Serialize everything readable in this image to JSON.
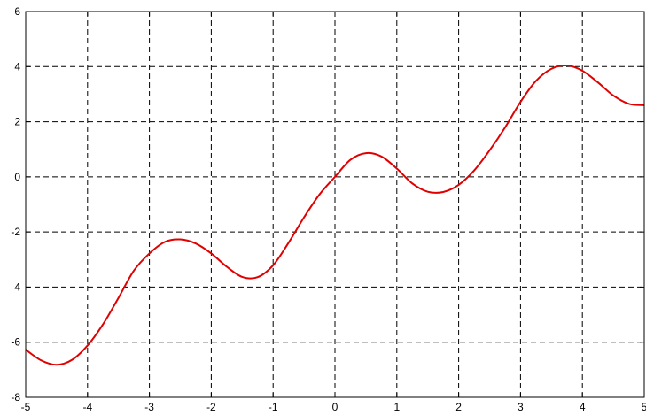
{
  "chart_data": {
    "type": "line",
    "title": "",
    "xlabel": "",
    "ylabel": "",
    "xlim": [
      -5,
      5
    ],
    "ylim": [
      -8,
      6
    ],
    "xticks": [
      -5,
      -4,
      -3,
      -2,
      -1,
      0,
      1,
      2,
      3,
      4,
      5
    ],
    "yticks": [
      -8,
      -6,
      -4,
      -2,
      0,
      2,
      4,
      6
    ],
    "grid": true,
    "series": [
      {
        "color": "#e00000",
        "x": [
          -5.0,
          -4.75,
          -4.5,
          -4.25,
          -4.0,
          -3.75,
          -3.5,
          -3.25,
          -3.0,
          -2.75,
          -2.5,
          -2.25,
          -2.0,
          -1.75,
          -1.5,
          -1.25,
          -1.0,
          -0.75,
          -0.5,
          -0.25,
          0.0,
          0.25,
          0.5,
          0.75,
          1.0,
          1.25,
          1.5,
          1.75,
          2.0,
          2.25,
          2.5,
          2.75,
          3.0,
          3.25,
          3.5,
          3.75,
          4.0,
          4.25,
          4.5,
          4.75,
          5.0
        ],
        "y": [
          -6.27,
          -6.66,
          -6.82,
          -6.64,
          -6.12,
          -5.35,
          -4.39,
          -3.4,
          -2.78,
          -2.36,
          -2.27,
          -2.42,
          -2.78,
          -3.26,
          -3.63,
          -3.64,
          -3.21,
          -2.39,
          -1.47,
          -0.64,
          0.0,
          0.62,
          0.86,
          0.74,
          0.3,
          -0.24,
          -0.54,
          -0.55,
          -0.29,
          0.23,
          0.96,
          1.79,
          2.72,
          3.48,
          3.92,
          4.04,
          3.85,
          3.43,
          2.95,
          2.65,
          2.6
        ]
      }
    ]
  }
}
